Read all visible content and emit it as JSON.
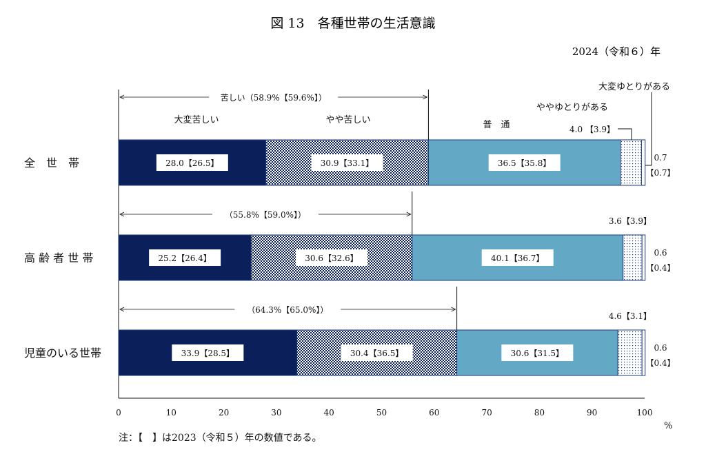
{
  "title": "図 13　各種世帯の生活意識",
  "year_label": "2024（令和６）年",
  "note": "注：【　】は2023（令和５）年の数値である。",
  "unit": "%",
  "colors": {
    "very_hard": "#0b1f5a",
    "somewhat_hard": "#0b1f5a",
    "normal": "#63a9c6",
    "somewhat_comfortable": "#ffffff",
    "very_comfortable": "#ffffff"
  },
  "chart_data": {
    "type": "bar",
    "orientation": "horizontal-stacked",
    "xlim": [
      0,
      100
    ],
    "xticks": [
      0,
      10,
      20,
      30,
      40,
      50,
      60,
      70,
      80,
      90,
      100
    ],
    "categories": [
      "全　世　帯",
      "高 齢 者 世 帯",
      "児童のいる世帯"
    ],
    "series": [
      {
        "name": "大変苦しい",
        "values": [
          28.0,
          25.2,
          33.9
        ],
        "previous": [
          26.5,
          26.4,
          28.5
        ]
      },
      {
        "name": "やや苦しい",
        "values": [
          30.9,
          30.6,
          30.4
        ],
        "previous": [
          33.1,
          32.6,
          36.5
        ]
      },
      {
        "name": "普　通",
        "values": [
          36.5,
          40.1,
          30.6
        ],
        "previous": [
          35.8,
          36.7,
          31.5
        ]
      },
      {
        "name": "ややゆとりがある",
        "values": [
          4.0,
          3.6,
          4.6
        ],
        "previous": [
          3.9,
          3.9,
          3.1
        ]
      },
      {
        "name": "大変ゆとりがある",
        "values": [
          0.7,
          0.6,
          0.6
        ],
        "previous": [
          0.7,
          0.4,
          0.4
        ]
      }
    ],
    "hard_totals": [
      {
        "label": "苦しい（58.9%【59.6%】）",
        "value": 58.9,
        "previous": 59.6
      },
      {
        "label": "（55.8%【59.0%】）",
        "value": 55.8,
        "previous": 59.0
      },
      {
        "label": "（64.3%【65.0%】）",
        "value": 64.3,
        "previous": 65.0
      }
    ]
  }
}
